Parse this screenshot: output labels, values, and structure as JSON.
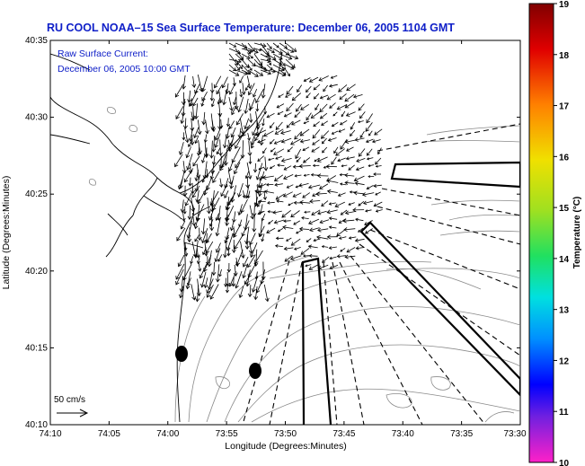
{
  "title": "RU COOL   NOAA–15  Sea Surface Temperature:  December 06, 2005 1104 GMT",
  "legend": {
    "line1": "Raw Surface Current:",
    "line2": "December 06, 2005 10:00 GMT"
  },
  "axes": {
    "xlabel": "Longitude (Degrees:Minutes)",
    "ylabel": "Latitude (Degrees:Minutes)",
    "x_ticks": [
      "74:10",
      "74:05",
      "74:00",
      "73:55",
      "73:50",
      "73:45",
      "73:40",
      "73:35",
      "73:30"
    ],
    "y_ticks": [
      "40:35",
      "40:30",
      "40:25",
      "40:20",
      "40:15",
      "40:10"
    ]
  },
  "colorbar": {
    "title": "Temperature (°C)",
    "ticks": [
      "19",
      "18",
      "17",
      "16",
      "15",
      "14",
      "13",
      "12",
      "11",
      "10"
    ],
    "min": 10,
    "max": 19
  },
  "scale": {
    "label": "50 cm/s"
  },
  "colors": {
    "title": "#1020c8",
    "legend_text": "#1020c8",
    "arrows": "#000000",
    "contours": "#888888"
  },
  "icons": [
    "station-dot-icon",
    "current-vector-arrow"
  ]
}
